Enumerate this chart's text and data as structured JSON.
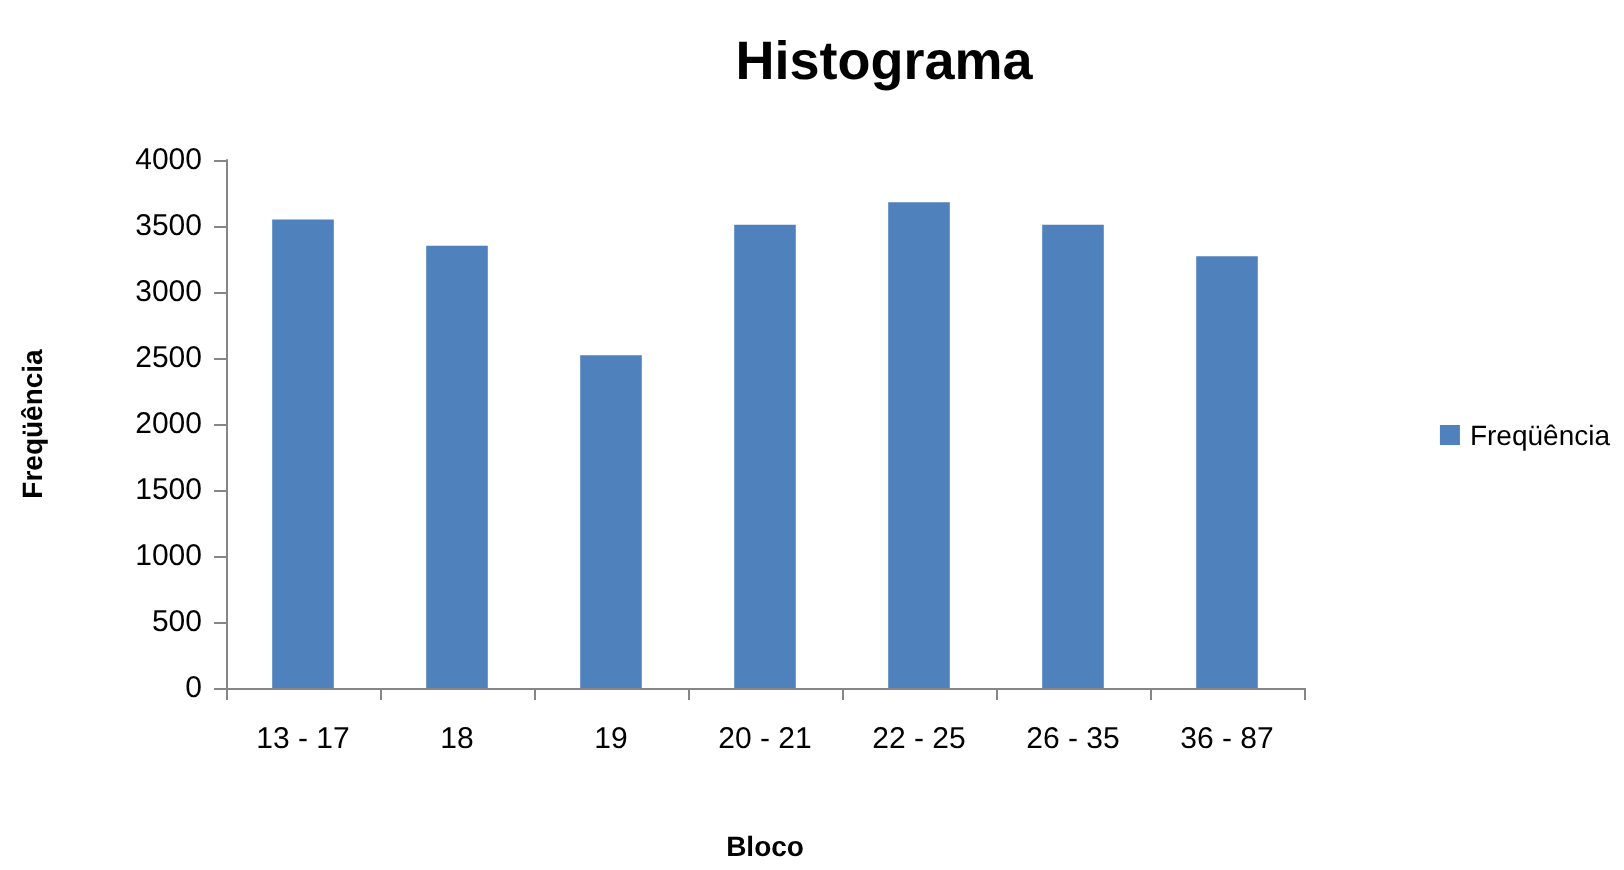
{
  "chart_data": {
    "type": "bar",
    "title": "Histograma",
    "xlabel": "Bloco",
    "ylabel": "Freqüência",
    "categories": [
      "13 - 17",
      "18",
      "19",
      "20 - 21",
      "22 - 25",
      "26 - 35",
      "36 - 87"
    ],
    "series": [
      {
        "name": "Freqüência",
        "color": "#4f81bd",
        "values": [
          3550,
          3350,
          2520,
          3510,
          3680,
          3510,
          3270
        ]
      }
    ],
    "ylim": [
      0,
      4000
    ],
    "yticks": [
      0,
      500,
      1000,
      1500,
      2000,
      2500,
      3000,
      3500,
      4000
    ],
    "grid": false,
    "legend": "right"
  }
}
